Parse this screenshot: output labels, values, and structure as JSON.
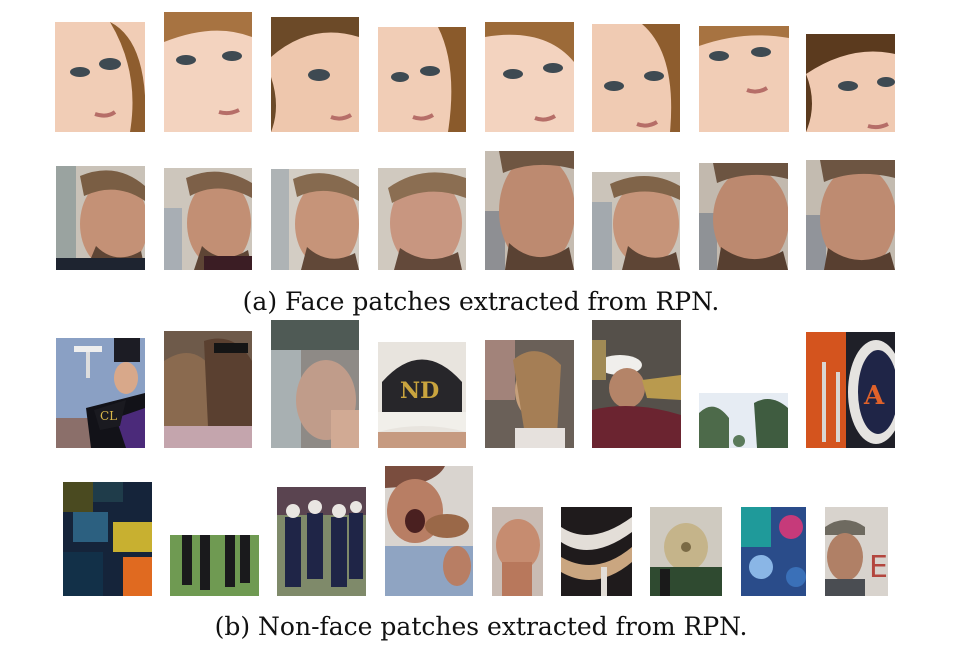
{
  "figure": {
    "caption_a": "(a) Face patches extracted from RPN.",
    "caption_b": "(b) Non-face patches extracted from RPN."
  },
  "colors": {
    "skin_light": "#f1cdb6",
    "skin_mid": "#d9a68a",
    "hair_light": "#a6733e",
    "hair_dark": "#5b3a1e",
    "man_skin": "#c49176",
    "man_hair": "#7a5e44",
    "navy": "#1f2547",
    "purple": "#4b2a7a",
    "maroon": "#6b2430",
    "green_field": "#4f7d3d",
    "orange": "#d4541e",
    "sky": "#cfdbe8"
  }
}
